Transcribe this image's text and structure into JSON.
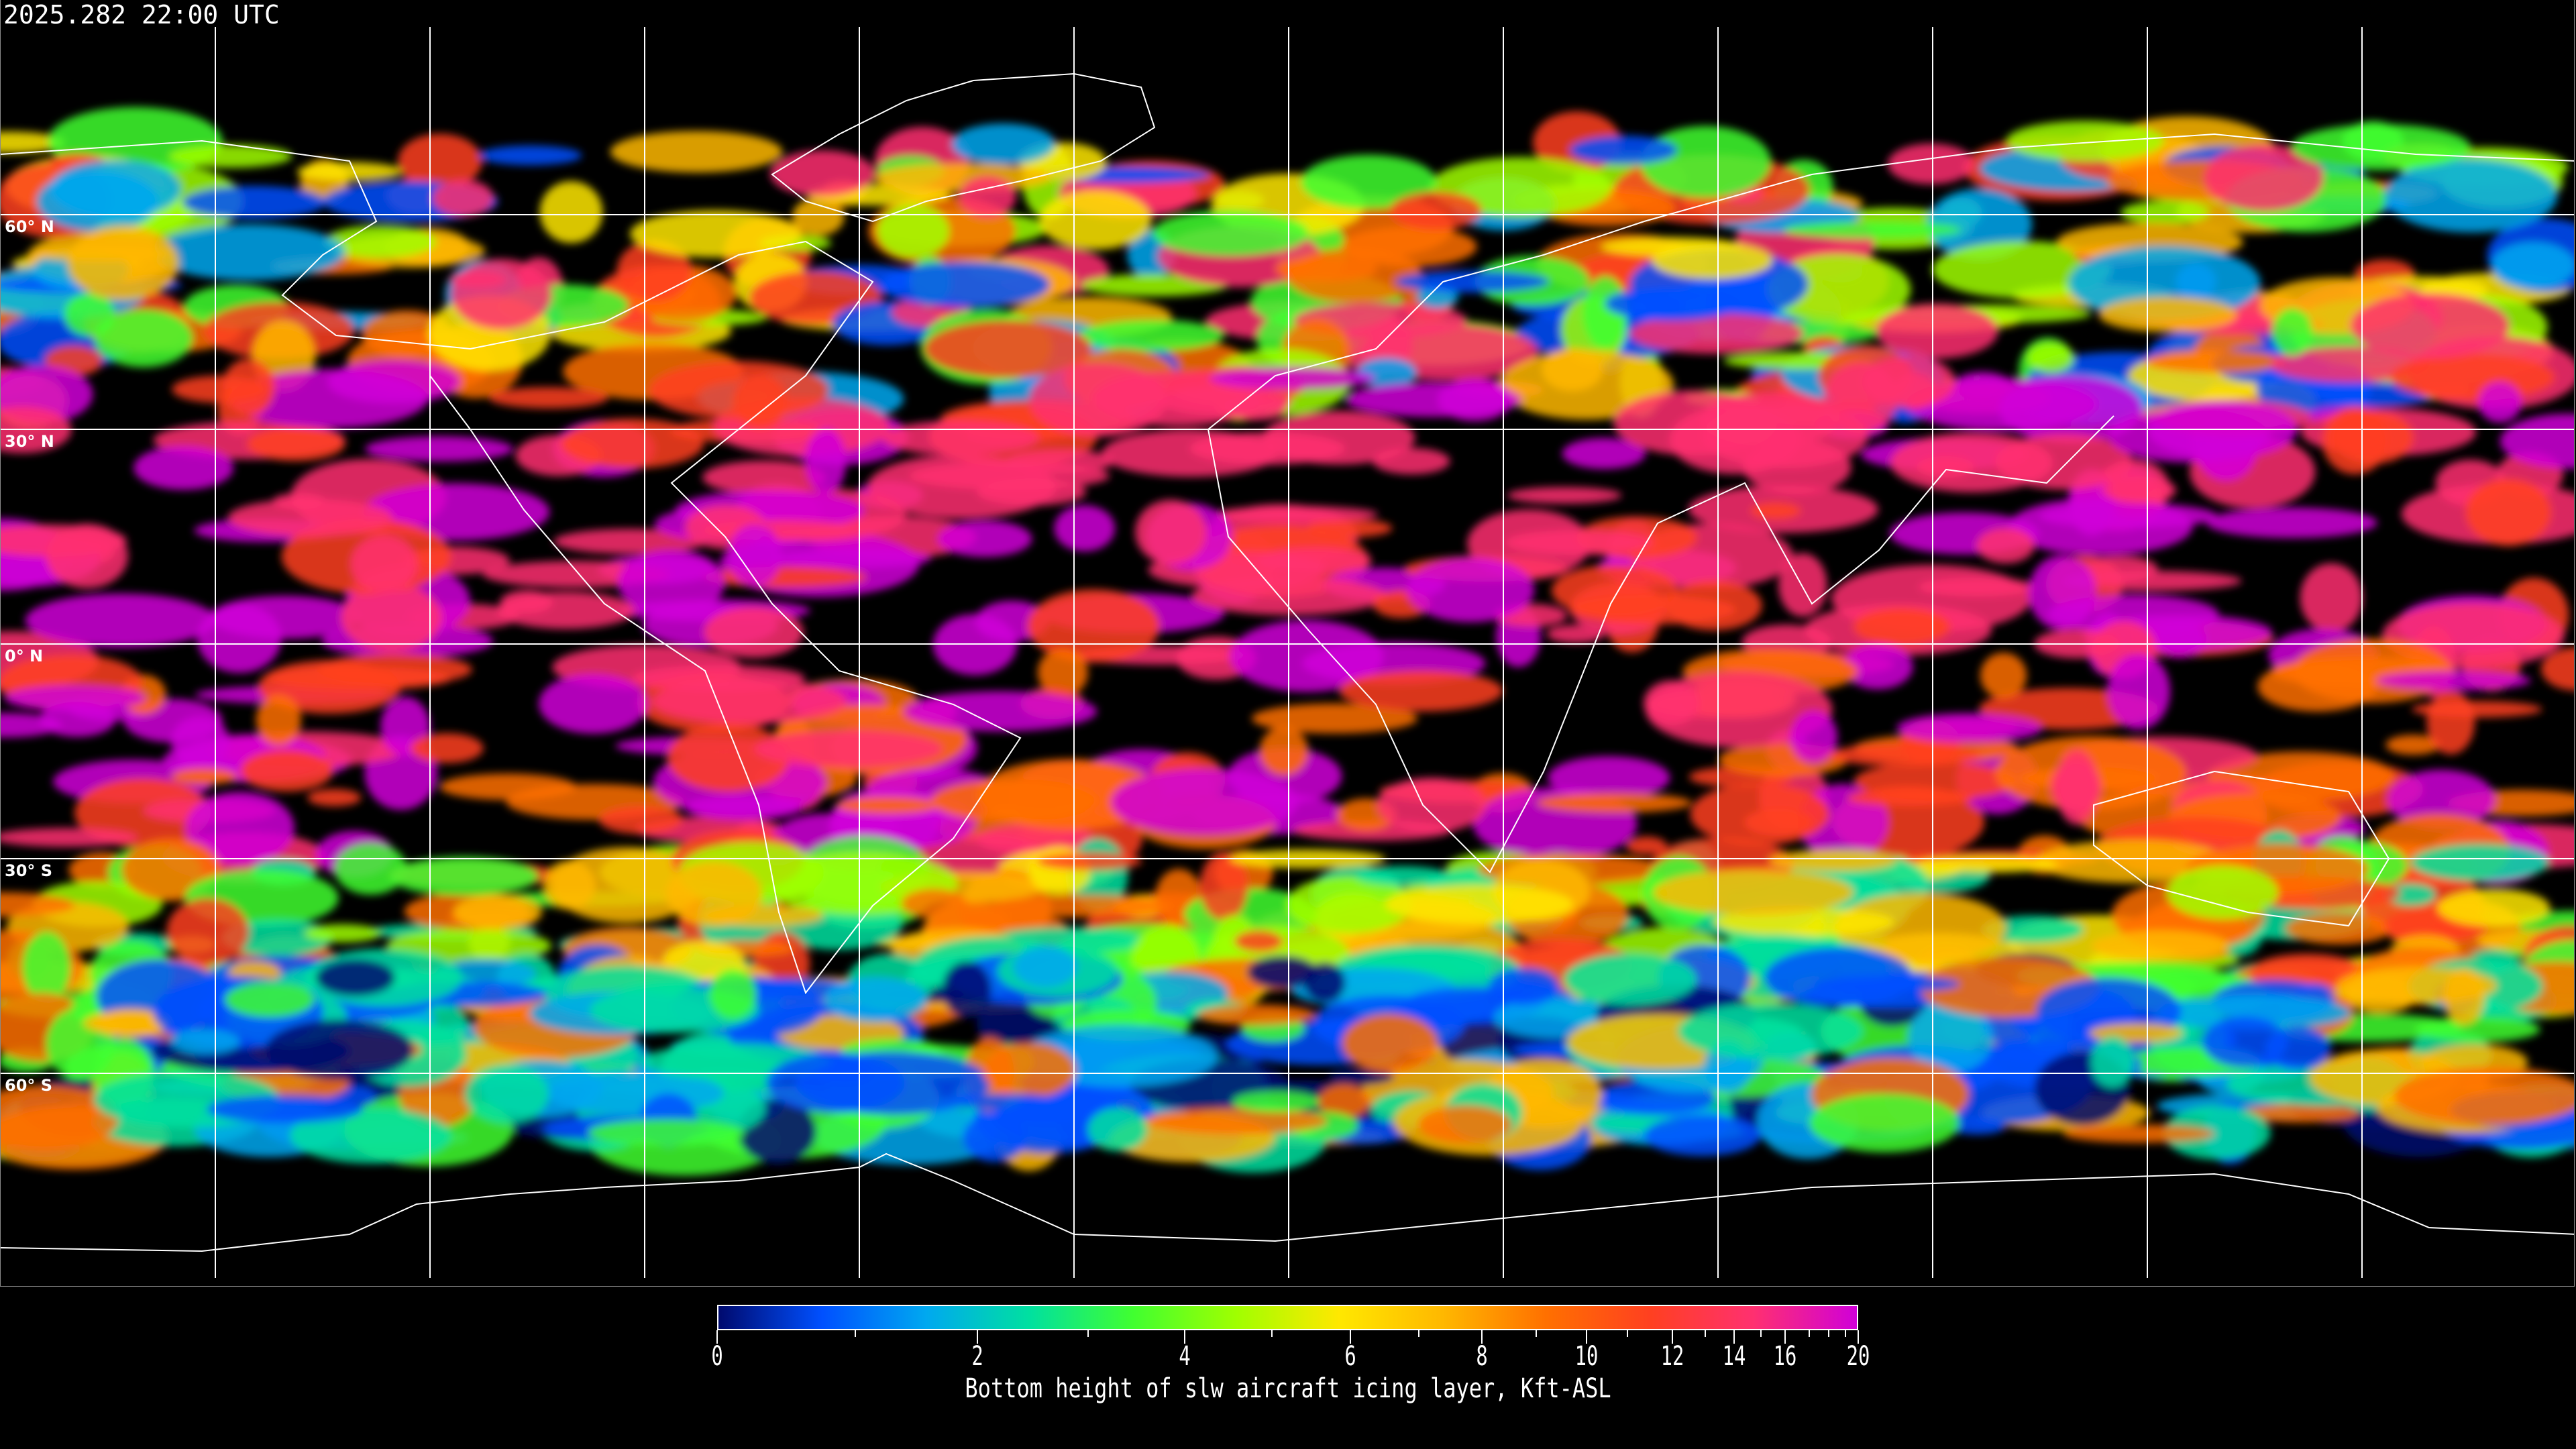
{
  "header": {
    "timestamp": "2025.282 22:00 UTC"
  },
  "map": {
    "projection": "equirectangular",
    "graticule_spacing_deg": 30,
    "lat_labels": [
      "60° N",
      "30° N",
      "0° N",
      "30° S",
      "60° S"
    ],
    "background_color": "#000000",
    "coastline_color": "#ffffff",
    "grid_color": "#ffffff"
  },
  "colorbar": {
    "title": "Bottom height of slw aircraft icing layer, Kft-ASL",
    "range": [
      0,
      20
    ],
    "tick_labels": [
      "0",
      "2",
      "4",
      "6",
      "8",
      "10",
      "12",
      "14",
      "16",
      "20"
    ],
    "minor_ticks": [
      1,
      3,
      5,
      7,
      9,
      11,
      13,
      15,
      17,
      18,
      19
    ],
    "colors": [
      "#000a6e",
      "#0050ff",
      "#00a8f0",
      "#00e0a0",
      "#40ff30",
      "#a0ff00",
      "#ffe800",
      "#ffb800",
      "#ff7000",
      "#ff4020",
      "#ff3070",
      "#d000d8"
    ]
  }
}
